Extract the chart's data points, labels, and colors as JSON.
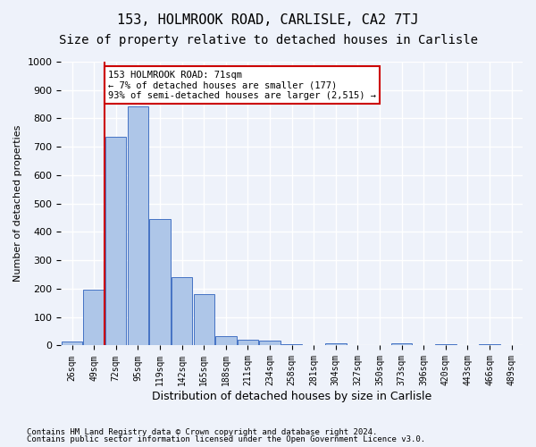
{
  "title": "153, HOLMROOK ROAD, CARLISLE, CA2 7TJ",
  "subtitle": "Size of property relative to detached houses in Carlisle",
  "xlabel": "Distribution of detached houses by size in Carlisle",
  "ylabel": "Number of detached properties",
  "bin_labels": [
    "26sqm",
    "49sqm",
    "72sqm",
    "95sqm",
    "119sqm",
    "142sqm",
    "165sqm",
    "188sqm",
    "211sqm",
    "234sqm",
    "258sqm",
    "281sqm",
    "304sqm",
    "327sqm",
    "350sqm",
    "373sqm",
    "396sqm",
    "420sqm",
    "443sqm",
    "466sqm",
    "489sqm"
  ],
  "bar_heights": [
    15,
    197,
    735,
    843,
    447,
    242,
    181,
    33,
    21,
    16,
    4,
    0,
    8,
    0,
    0,
    7,
    0,
    5,
    0,
    5,
    0
  ],
  "bar_color": "#aec6e8",
  "bar_edge_color": "#4472c4",
  "vline_color": "#cc0000",
  "annotation_text": "153 HOLMROOK ROAD: 71sqm\n← 7% of detached houses are smaller (177)\n93% of semi-detached houses are larger (2,515) →",
  "annotation_box_color": "#ffffff",
  "annotation_box_edge": "#cc0000",
  "ylim": [
    0,
    1000
  ],
  "yticks": [
    0,
    100,
    200,
    300,
    400,
    500,
    600,
    700,
    800,
    900,
    1000
  ],
  "footer1": "Contains HM Land Registry data © Crown copyright and database right 2024.",
  "footer2": "Contains public sector information licensed under the Open Government Licence v3.0.",
  "bg_color": "#eef2fa",
  "plot_bg_color": "#eef2fa",
  "grid_color": "#ffffff",
  "title_fontsize": 11,
  "subtitle_fontsize": 10
}
